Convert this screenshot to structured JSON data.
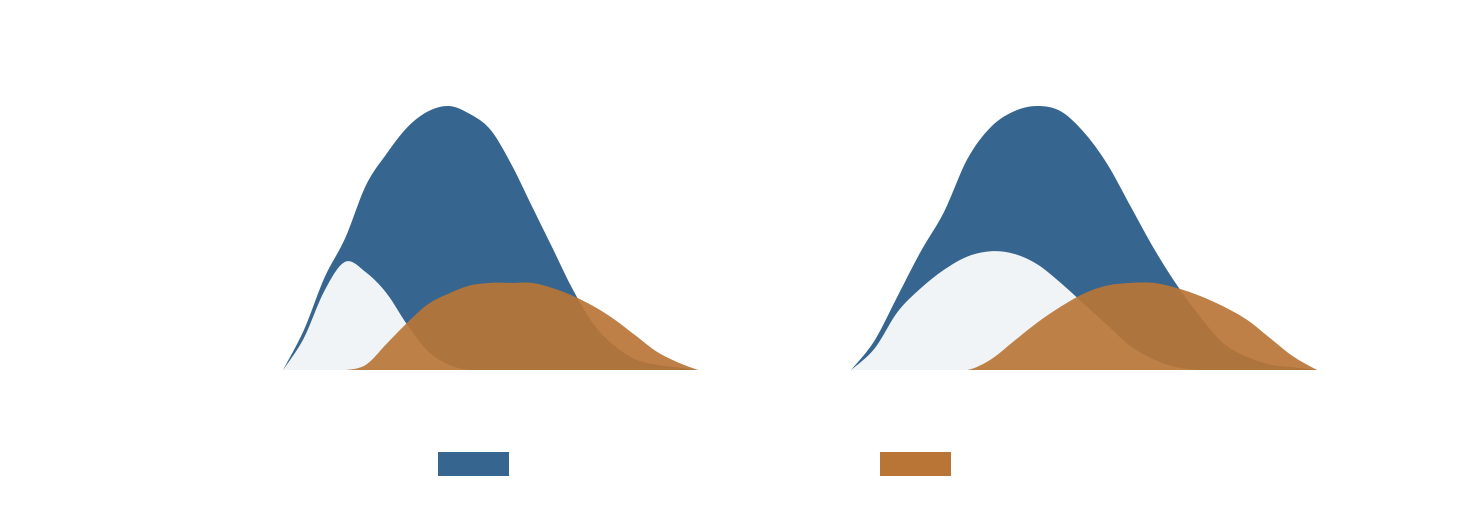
{
  "chart_data": [
    {
      "type": "area",
      "x": [
        0,
        1,
        2,
        3,
        4,
        5,
        6,
        7,
        8,
        9,
        10,
        11,
        12,
        13,
        14,
        15,
        16,
        17,
        18,
        19,
        20
      ],
      "xlim": [
        0,
        20
      ],
      "ylim": [
        0,
        100
      ],
      "series": [
        {
          "color": "#36658f",
          "legend": true,
          "values": [
            0,
            15,
            35,
            50,
            70,
            82,
            92,
            98,
            100,
            97,
            91,
            78,
            62,
            46,
            30,
            17,
            9,
            4,
            2,
            1,
            0
          ]
        },
        {
          "color": "#f0f4f7",
          "legend": false,
          "values": [
            0,
            12,
            30,
            41,
            37,
            29,
            17,
            7,
            2,
            0,
            0,
            0,
            0,
            0,
            0,
            0,
            0,
            0,
            0,
            0,
            0
          ]
        },
        {
          "color": "#b87536",
          "legend": false,
          "values": [
            0,
            0,
            0,
            0,
            2,
            10,
            18,
            25,
            29,
            32,
            33,
            33,
            33,
            31,
            28,
            24,
            19,
            13,
            7,
            3,
            0
          ]
        }
      ]
    },
    {
      "type": "area",
      "x": [
        0,
        1,
        2,
        3,
        4,
        5,
        6,
        7,
        8,
        9,
        10,
        11,
        12,
        13,
        14,
        15,
        16,
        17,
        18,
        19,
        20
      ],
      "xlim": [
        0,
        20
      ],
      "ylim": [
        0,
        100
      ],
      "series": [
        {
          "color": "#36658f",
          "legend": false,
          "values": [
            0,
            11,
            28,
            45,
            60,
            80,
            92,
            98,
            100,
            98,
            90,
            78,
            62,
            46,
            32,
            20,
            10,
            5,
            2,
            1,
            0
          ]
        },
        {
          "color": "#f0f4f7",
          "legend": false,
          "values": [
            0,
            8,
            22,
            31,
            38,
            43,
            45,
            44,
            40,
            33,
            25,
            17,
            9,
            4,
            1,
            0,
            0,
            0,
            0,
            0,
            0
          ]
        },
        {
          "color": "#b87536",
          "legend": true,
          "values": [
            0,
            0,
            0,
            0,
            0,
            0,
            4,
            11,
            18,
            24,
            29,
            32,
            33,
            33,
            31,
            28,
            24,
            19,
            12,
            5,
            0
          ]
        }
      ]
    }
  ]
}
